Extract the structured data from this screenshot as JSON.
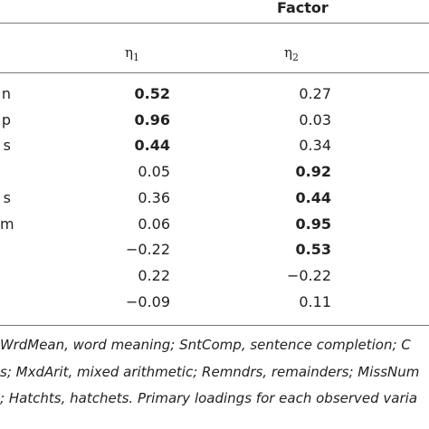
{
  "table": {
    "factor_header": "Factor",
    "columns": [
      {
        "symbol": "η",
        "index": "1"
      },
      {
        "symbol": "η",
        "index": "2"
      }
    ],
    "rows": [
      {
        "label": "n",
        "eta1": "0.52",
        "eta2": "0.27",
        "eta1_bold": true,
        "eta2_bold": false
      },
      {
        "label": "p",
        "eta1": "0.96",
        "eta2": "0.03",
        "eta1_bold": true,
        "eta2_bold": false
      },
      {
        "label": "s",
        "eta1": "0.44",
        "eta2": "0.34",
        "eta1_bold": true,
        "eta2_bold": false
      },
      {
        "label": "",
        "eta1": "0.05",
        "eta2": "0.92",
        "eta1_bold": false,
        "eta2_bold": true
      },
      {
        "label": "s",
        "eta1": "0.36",
        "eta2": "0.44",
        "eta1_bold": false,
        "eta2_bold": true
      },
      {
        "label": "m",
        "eta1": "0.06",
        "eta2": "0.95",
        "eta1_bold": false,
        "eta2_bold": true
      },
      {
        "label": "",
        "eta1": "−0.22",
        "eta2": "0.53",
        "eta1_bold": false,
        "eta2_bold": true
      },
      {
        "label": "",
        "eta1": "0.22",
        "eta2": "−0.22",
        "eta1_bold": false,
        "eta2_bold": false
      },
      {
        "label": "",
        "eta1": "−0.09",
        "eta2": "0.11",
        "eta1_bold": false,
        "eta2_bold": false
      }
    ]
  },
  "footnote": {
    "line1": "WrdMean, word meaning; SntComp, sentence completion; C",
    "line2": "s; MxdArit, mixed arithmetic; Remndrs, remainders; MissNum",
    "line3": "; Hatchts, hatchets. Primary loadings for each observed varia"
  }
}
